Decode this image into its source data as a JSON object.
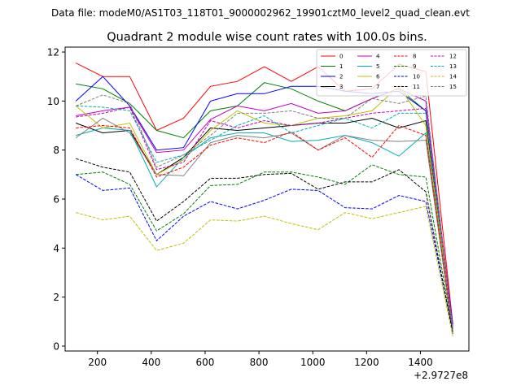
{
  "chart_data": {
    "type": "line",
    "suptitle": "Data file: modeM0/AS1T03_118T01_9000002962_19901cztM0_level2_quad_clean.evt",
    "title": "Quadrant 2 module wise count rates with 100.0s bins.",
    "xlabel": "",
    "ylabel": "",
    "x_offset_label": "+2.9727e8",
    "xlim": [
      80,
      1580
    ],
    "ylim": [
      -0.2,
      12.2
    ],
    "x_ticks": [
      200,
      400,
      600,
      800,
      1000,
      1200,
      1400
    ],
    "y_ticks": [
      0,
      2,
      4,
      6,
      8,
      10,
      12
    ],
    "legend_position": "top-right",
    "x": [
      120,
      220,
      320,
      420,
      520,
      620,
      720,
      820,
      920,
      1020,
      1120,
      1220,
      1320,
      1420,
      1520
    ],
    "series": [
      {
        "name": "0",
        "color": "#ff0000",
        "dash": "solid",
        "values": [
          11.55,
          11.0,
          11.0,
          8.8,
          9.3,
          10.6,
          10.8,
          11.4,
          10.8,
          11.4,
          10.4,
          10.5,
          11.5,
          11.2,
          0.9
        ]
      },
      {
        "name": "1",
        "color": "#008000",
        "dash": "solid",
        "values": [
          10.7,
          10.5,
          9.9,
          8.8,
          8.5,
          9.6,
          9.8,
          10.75,
          10.5,
          10.0,
          9.6,
          10.1,
          10.5,
          9.6,
          0.8
        ]
      },
      {
        "name": "2",
        "color": "#0000ff",
        "dash": "solid",
        "values": [
          10.0,
          11.0,
          9.8,
          8.0,
          8.1,
          10.0,
          10.3,
          10.3,
          10.6,
          10.6,
          10.4,
          10.3,
          10.4,
          9.6,
          0.9
        ]
      },
      {
        "name": "3",
        "color": "#000000",
        "dash": "solid",
        "values": [
          9.1,
          8.7,
          8.8,
          7.0,
          7.7,
          8.9,
          8.8,
          8.9,
          9.0,
          9.1,
          9.1,
          9.3,
          8.9,
          9.2,
          0.7
        ]
      },
      {
        "name": "4",
        "color": "#c000c0",
        "dash": "solid",
        "values": [
          9.4,
          9.6,
          9.75,
          7.9,
          8.0,
          9.25,
          9.8,
          9.6,
          9.9,
          9.5,
          9.6,
          10.1,
          10.5,
          10.0,
          0.8
        ]
      },
      {
        "name": "5",
        "color": "#00b0b0",
        "dash": "solid",
        "values": [
          8.6,
          8.9,
          8.8,
          6.5,
          7.7,
          8.5,
          8.7,
          8.7,
          8.35,
          8.4,
          8.6,
          8.3,
          7.75,
          8.7,
          0.7
        ]
      },
      {
        "name": "6",
        "color": "#c0c000",
        "dash": "solid",
        "values": [
          9.8,
          8.9,
          9.1,
          7.0,
          7.6,
          8.8,
          9.6,
          9.1,
          9.0,
          9.3,
          9.4,
          9.6,
          10.6,
          9.0,
          0.7
        ]
      },
      {
        "name": "7",
        "color": "#808080",
        "dash": "solid",
        "values": [
          8.5,
          9.3,
          8.7,
          7.0,
          6.95,
          8.3,
          8.6,
          8.5,
          8.7,
          8.0,
          8.6,
          8.4,
          8.35,
          8.4,
          0.5
        ]
      },
      {
        "name": "8",
        "color": "#ff0000",
        "dash": "dashed",
        "values": [
          8.9,
          9.0,
          8.9,
          6.9,
          7.3,
          8.2,
          8.5,
          8.3,
          8.75,
          8.0,
          8.5,
          7.7,
          9.0,
          8.6,
          0.6
        ]
      },
      {
        "name": "9",
        "color": "#008000",
        "dash": "dashed",
        "values": [
          7.0,
          7.1,
          6.6,
          4.7,
          5.4,
          6.55,
          6.6,
          7.1,
          7.1,
          6.9,
          6.6,
          7.4,
          7.0,
          6.9,
          0.6
        ]
      },
      {
        "name": "10",
        "color": "#0000ff",
        "dash": "dashed",
        "values": [
          7.0,
          6.35,
          6.45,
          4.3,
          5.3,
          5.9,
          5.6,
          5.95,
          6.4,
          6.35,
          5.65,
          5.6,
          6.15,
          5.9,
          0.6
        ]
      },
      {
        "name": "11",
        "color": "#000000",
        "dash": "dashed",
        "values": [
          7.65,
          7.3,
          7.1,
          5.1,
          5.9,
          6.85,
          6.85,
          7.0,
          7.05,
          6.4,
          6.7,
          6.7,
          7.2,
          6.3,
          0.5
        ]
      },
      {
        "name": "12",
        "color": "#c000c0",
        "dash": "dashed",
        "values": [
          9.35,
          9.5,
          9.75,
          7.2,
          7.5,
          9.2,
          8.9,
          9.2,
          9.0,
          9.1,
          9.3,
          9.5,
          9.6,
          9.7,
          0.7
        ]
      },
      {
        "name": "13",
        "color": "#00b0b0",
        "dash": "dashed",
        "values": [
          9.8,
          9.75,
          9.6,
          7.5,
          7.8,
          8.4,
          9.0,
          9.4,
          8.7,
          9.0,
          9.3,
          8.9,
          9.5,
          9.5,
          0.7
        ]
      },
      {
        "name": "14",
        "color": "#c0c000",
        "dash": "dashed",
        "values": [
          5.45,
          5.15,
          5.3,
          3.9,
          4.2,
          5.15,
          5.1,
          5.3,
          5.0,
          4.75,
          5.45,
          5.2,
          5.45,
          5.7,
          0.4
        ]
      },
      {
        "name": "15",
        "color": "#808080",
        "dash": "dashed",
        "values": [
          9.8,
          10.25,
          9.9,
          7.3,
          7.8,
          8.6,
          9.5,
          9.5,
          9.6,
          9.3,
          9.3,
          10.1,
          9.9,
          10.2,
          0.6
        ]
      }
    ]
  }
}
